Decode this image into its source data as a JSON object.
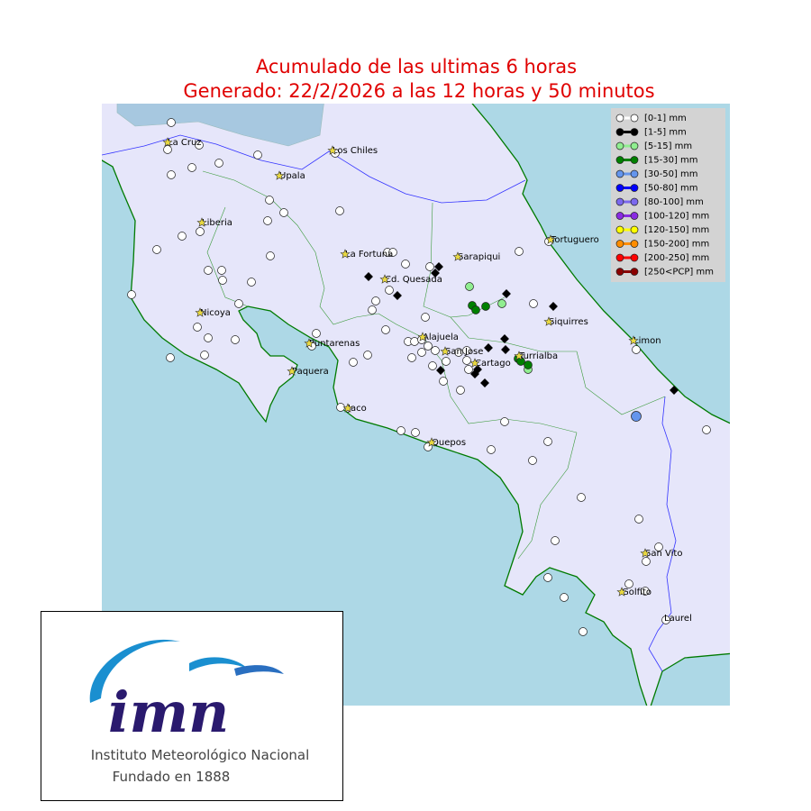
{
  "title": {
    "line1": "Acumulado de las ultimas 6 horas",
    "line2": "Generado:  22/2/2026 a las 12 horas y 50 minutos"
  },
  "legend": [
    {
      "label": "[0-1] mm",
      "color": "#ffffff"
    },
    {
      "label": "[1-5] mm",
      "color": "#000000"
    },
    {
      "label": "[5-15] mm",
      "color": "#90ee90"
    },
    {
      "label": "[15-30] mm",
      "color": "#008000"
    },
    {
      "label": "[30-50] mm",
      "color": "#6495ed"
    },
    {
      "label": "[50-80] mm",
      "color": "#0000ff"
    },
    {
      "label": "[80-100] mm",
      "color": "#7b68ee"
    },
    {
      "label": "[100-120] mm",
      "color": "#8a2be2"
    },
    {
      "label": "[120-150] mm",
      "color": "#ffff00"
    },
    {
      "label": "[150-200] mm",
      "color": "#ff8c00"
    },
    {
      "label": "[200-250] mm",
      "color": "#ff0000"
    },
    {
      "label": "[250<PCP] mm",
      "color": "#8b0000"
    }
  ],
  "places": [
    "La Cruz",
    "Los Chiles",
    "Upala",
    "Liberia",
    "La Fortuna",
    "Sarapiqui",
    "Tortuguero",
    "Cd. Quesada",
    "Nicoya",
    "Siquirres",
    "Puntarenas",
    "Alajuela",
    "San Jose",
    "Limon",
    "Turrialba",
    "Cartago",
    "Paquera",
    "Jaco",
    "Quepos",
    "San Vito",
    "Golfito",
    "Laurel"
  ],
  "logo": {
    "mark": "imn",
    "name": "Instituto Meteorológico Nacional",
    "founded": "Fundado en 1888"
  }
}
